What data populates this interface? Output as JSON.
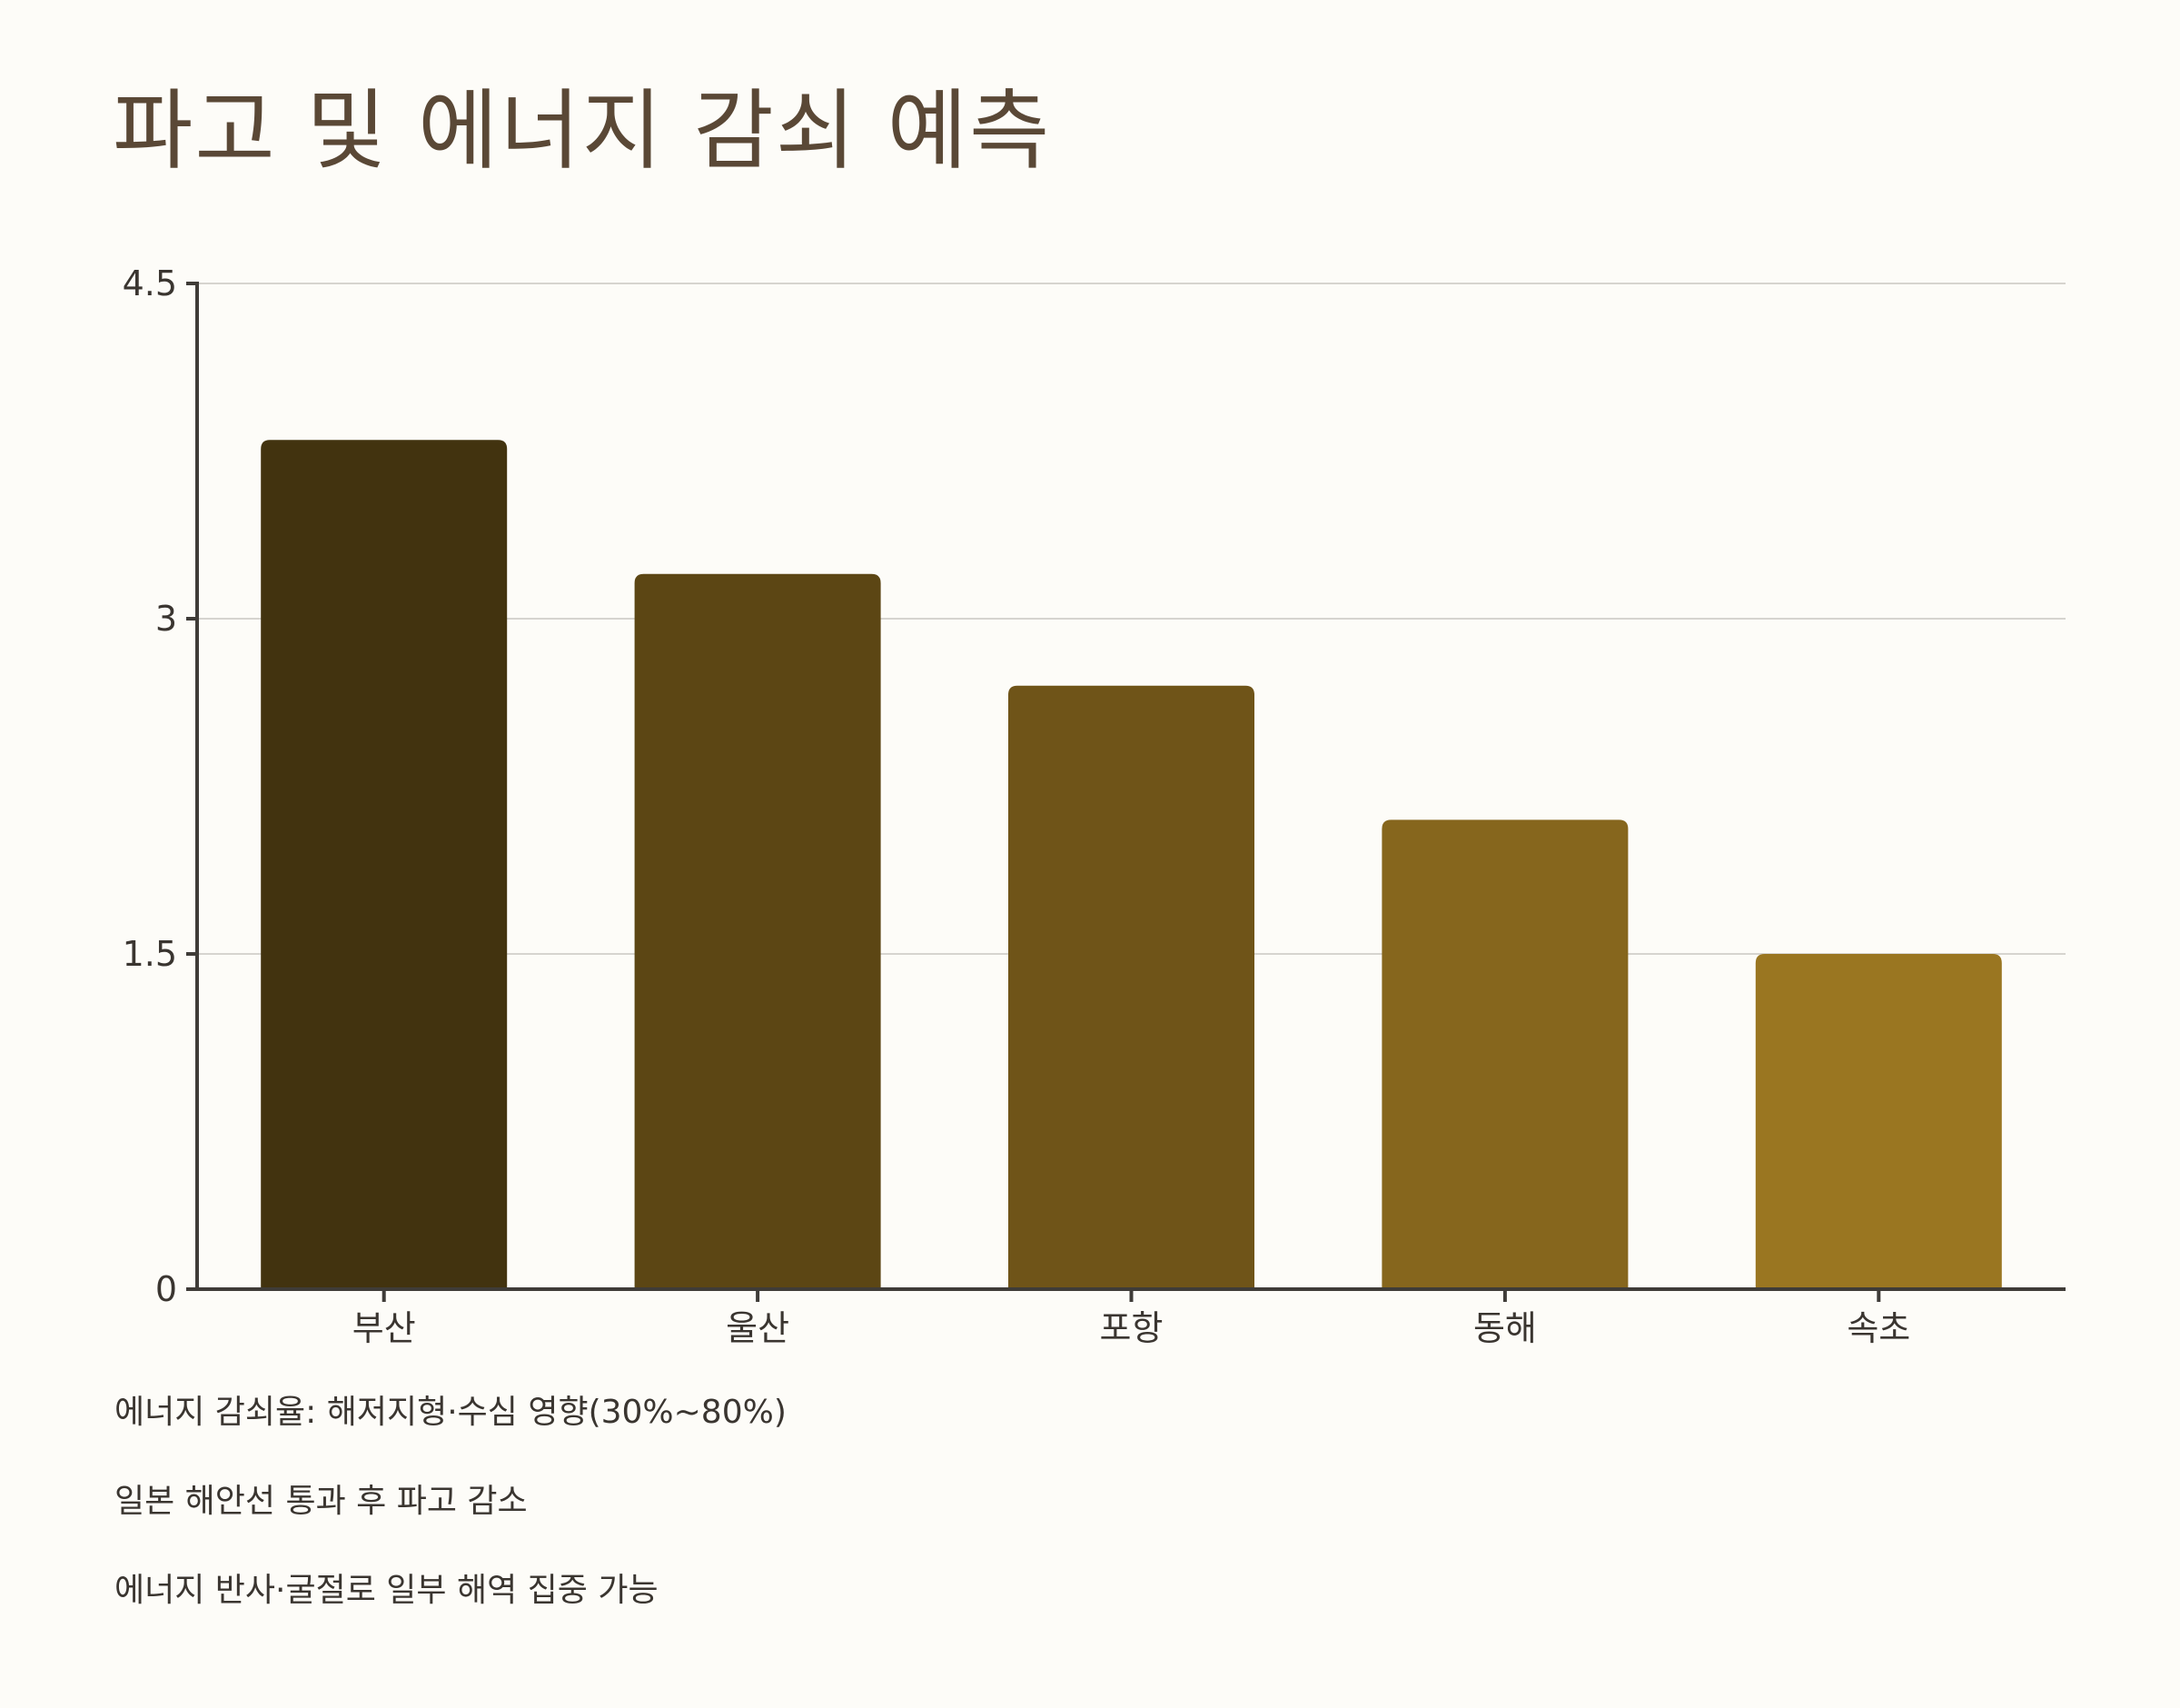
{
  "page": {
    "title": "파고 및 에너지 감쇠 예측",
    "notes": [
      "에너지 감쇠율: 해저지형·수심 영향(30%~80%)",
      "일본 해안선 통과 후 파고 감소",
      "에너지 반사·굴절로 일부 해역 집중 가능"
    ]
  },
  "chart_data": {
    "type": "bar",
    "title": "파고 및 에너지 감쇠 예측",
    "xlabel": "",
    "ylabel": "",
    "categories": [
      "부산",
      "울산",
      "포항",
      "동해",
      "속초"
    ],
    "values": [
      3.8,
      3.2,
      2.7,
      2.1,
      1.5
    ],
    "ylim": [
      0,
      4.5
    ],
    "yticks": [
      0,
      1.5,
      3,
      4.5
    ],
    "ytick_labels": [
      "0",
      "1.5",
      "3",
      "4.5"
    ],
    "grid": true,
    "legend": "none",
    "colors": [
      "#42330f",
      "#5c4614",
      "#6f5418",
      "#86661d",
      "#9a7621"
    ],
    "axis_color": "#3f3c38",
    "grid_color": "#d6d4cf"
  }
}
